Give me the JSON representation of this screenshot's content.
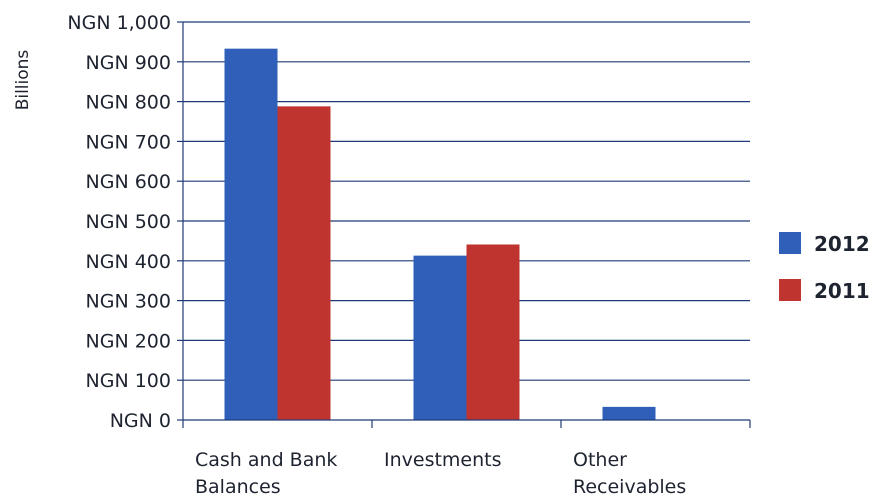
{
  "chart_data": {
    "type": "bar",
    "title": "",
    "xlabel": "",
    "ylabel": "Billions",
    "ylim": [
      0,
      1000
    ],
    "yticks": [
      {
        "value": 0,
        "label": "NGN 0"
      },
      {
        "value": 100,
        "label": "NGN 100"
      },
      {
        "value": 200,
        "label": "NGN 200"
      },
      {
        "value": 300,
        "label": "NGN 300"
      },
      {
        "value": 400,
        "label": "NGN 400"
      },
      {
        "value": 500,
        "label": "NGN 500"
      },
      {
        "value": 600,
        "label": "NGN 600"
      },
      {
        "value": 700,
        "label": "NGN 700"
      },
      {
        "value": 800,
        "label": "NGN 800"
      },
      {
        "value": 900,
        "label": "NGN 900"
      },
      {
        "value": 1000,
        "label": "NGN 1,000"
      }
    ],
    "categories": [
      [
        "Cash and Bank",
        "Balances"
      ],
      [
        "Investments"
      ],
      [
        "Other",
        "Receivables"
      ]
    ],
    "series": [
      {
        "name": "2012",
        "color": "#2f5fb8",
        "values": [
          933,
          413,
          33
        ]
      },
      {
        "name": "2011",
        "color": "#c0342f",
        "values": [
          788,
          441,
          0
        ]
      }
    ],
    "grid": true,
    "legend_position": "right"
  }
}
